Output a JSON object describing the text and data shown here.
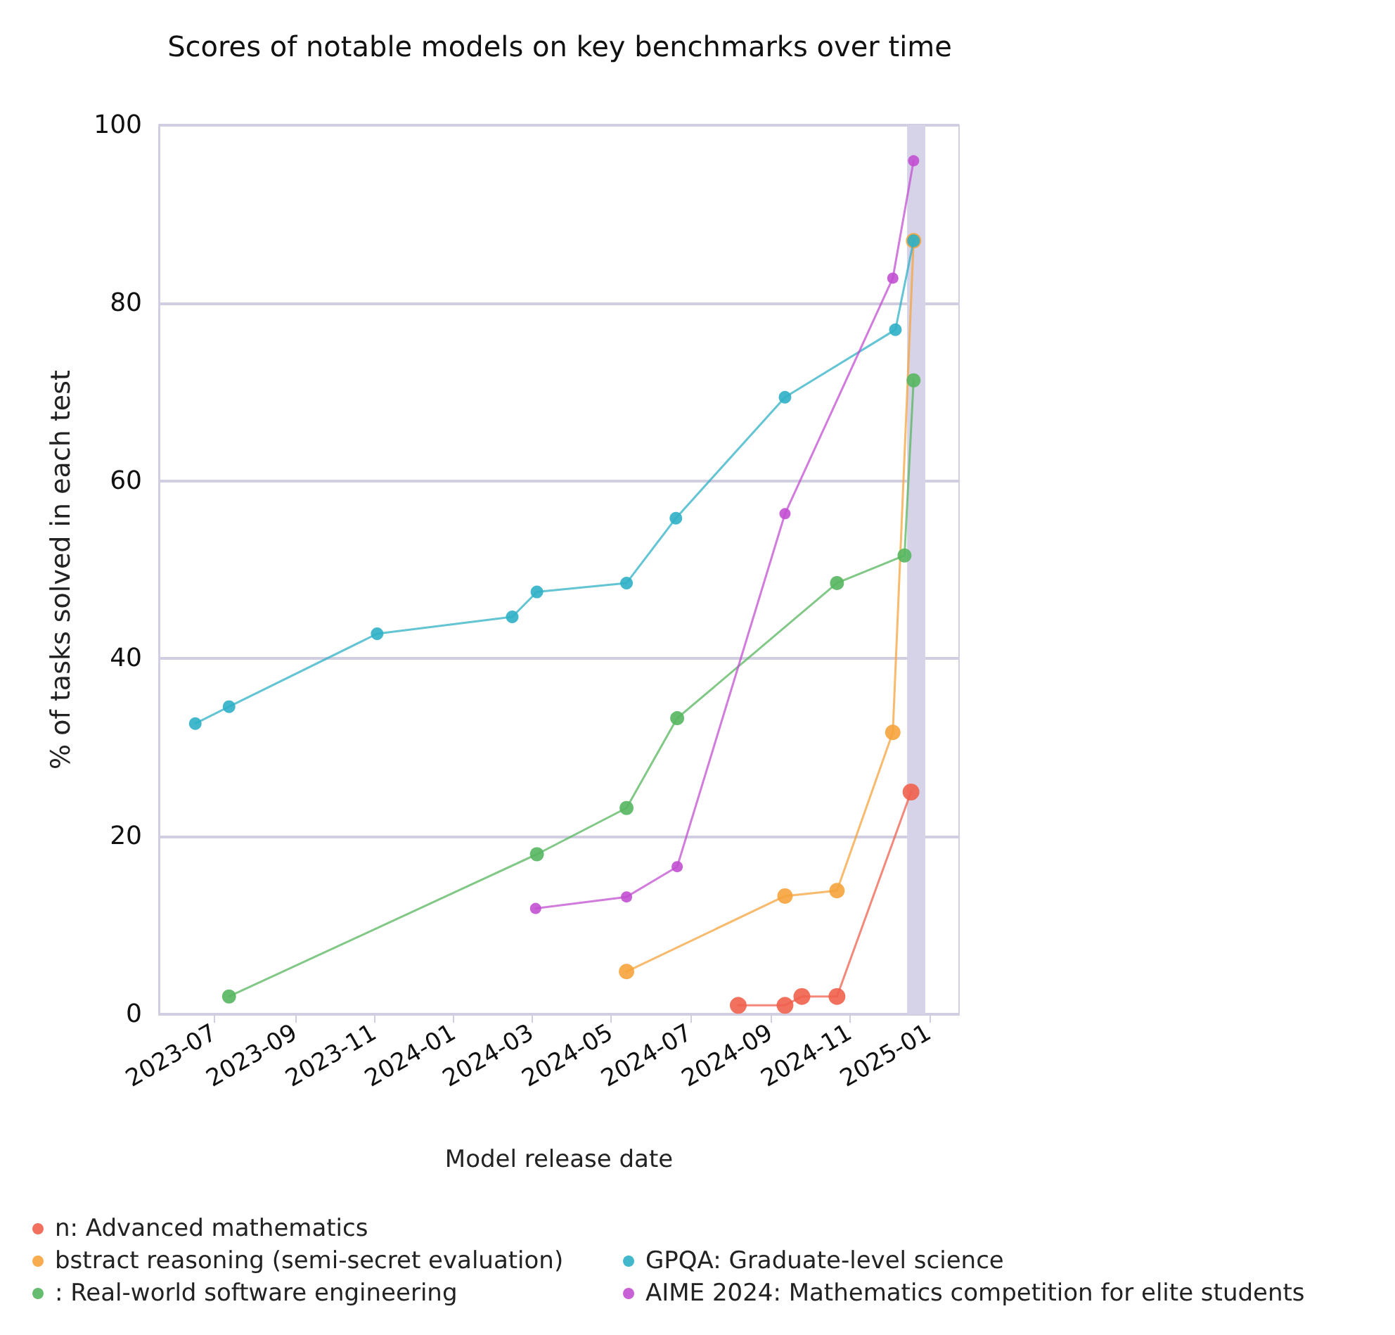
{
  "chart_data": {
    "type": "line",
    "title": "Scores of notable models on key benchmarks over time",
    "xlabel": "Model release date",
    "ylabel": "% of tasks solved in each test",
    "xlim": [
      "2023-05-19",
      "2025-01-24"
    ],
    "xticks": [
      "2023-07",
      "2023-09",
      "2023-11",
      "2024-01",
      "2024-03",
      "2024-05",
      "2024-07",
      "2024-09",
      "2024-11",
      "2025-01"
    ],
    "ylim": [
      0,
      100
    ],
    "yticks": [
      0,
      20,
      40,
      60,
      80,
      100
    ],
    "grid": "y",
    "legend": "bottom",
    "marker": "circle",
    "line_style": "solid",
    "bands": [
      {
        "axis": "x",
        "from": "2024-12-15",
        "to": "2024-12-29",
        "color": "#d6d3e8"
      }
    ],
    "series": [
      {
        "name": "n: Advanced mathematics",
        "color": "#f0604d",
        "x": [
          "2024-08-07",
          "2024-09-12",
          "2024-09-25",
          "2024-10-22",
          "2024-12-18"
        ],
        "values": [
          1,
          1,
          2,
          2,
          25
        ]
      },
      {
        "name": "bstract reasoning (semi-secret evaluation)",
        "color": "#f5a33c",
        "x": [
          "2024-05-13",
          "2024-09-12",
          "2024-10-22",
          "2024-12-04",
          "2024-12-20"
        ],
        "values": [
          4.8,
          13.3,
          13.9,
          31.7,
          87
        ]
      },
      {
        "name": ": Real-world software engineering",
        "color": "#57b65f",
        "x": [
          "2023-07-12",
          "2024-03-05",
          "2024-05-13",
          "2024-06-21",
          "2024-10-22",
          "2024-12-13",
          "2024-12-20"
        ],
        "values": [
          2,
          18,
          23.2,
          33.3,
          48.5,
          51.6,
          71.3
        ]
      },
      {
        "name": "GPQA: Graduate-level science",
        "color": "#2fb0c6",
        "x": [
          "2023-06-16",
          "2023-07-12",
          "2023-11-03",
          "2024-02-15",
          "2024-03-05",
          "2024-05-13",
          "2024-06-20",
          "2024-09-12",
          "2024-12-06",
          "2024-12-20"
        ],
        "values": [
          32.7,
          34.6,
          42.8,
          44.7,
          47.5,
          48.5,
          55.8,
          69.4,
          77,
          87
        ]
      },
      {
        "name": "AIME 2024: Mathematics competition for elite students",
        "color": "#c24fd2",
        "x": [
          "2024-03-04",
          "2024-05-13",
          "2024-06-21",
          "2024-09-12",
          "2024-12-04",
          "2024-12-20"
        ],
        "values": [
          11.9,
          13.2,
          16.6,
          56.3,
          82.8,
          96
        ]
      }
    ]
  }
}
